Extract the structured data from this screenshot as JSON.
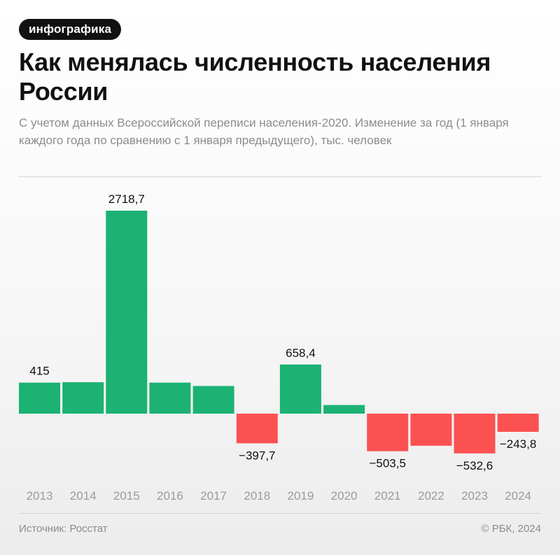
{
  "badge": "инфографика",
  "title": "Как менялась численность населения России",
  "subtitle": "С учетом данных Всероссийской переписи населения-2020. Изменение за год (1 января каждого года по сравнению с 1 января предыдущего), тыс. человек",
  "footer": {
    "source": "Источник: Росстат",
    "copyright": "© РБК, 2024"
  },
  "colors": {
    "positive": "#1bb273",
    "negative": "#fc5151"
  },
  "chart_data": {
    "type": "bar",
    "categories": [
      "2013",
      "2014",
      "2015",
      "2016",
      "2017",
      "2018",
      "2019",
      "2020",
      "2021",
      "2022",
      "2023",
      "2024"
    ],
    "values": [
      415,
      421,
      2718.7,
      415,
      370,
      -397.7,
      658.4,
      115,
      -503.5,
      -430,
      -532.6,
      -243.8
    ],
    "data_labels": [
      "415",
      "",
      "2718,7",
      "",
      "",
      "−397,7",
      "658,4",
      "",
      "−503,5",
      "",
      "−532,6",
      "−243,8"
    ],
    "title": "Как менялась численность населения России",
    "xlabel": "",
    "ylabel": "",
    "grid": false,
    "legend": "none"
  }
}
